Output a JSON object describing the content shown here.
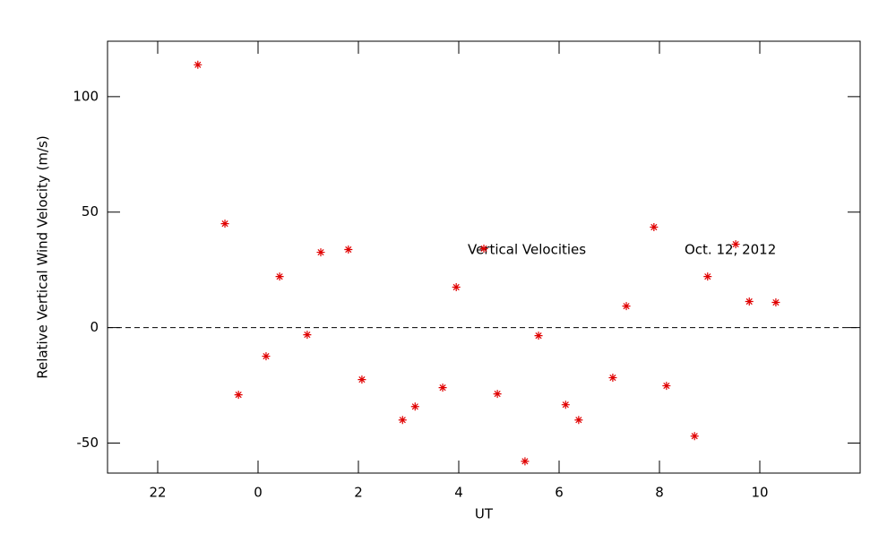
{
  "chart_data": {
    "type": "scatter",
    "x_label": "UT",
    "y_label": "Relative Vertical Wind Velocity (m/s)",
    "annotations": [
      "Vertical Velocities",
      "Oct. 12, 2012"
    ],
    "series": [
      {
        "color": "#e00000",
        "marker": "asterisk",
        "x": [
          -1.2,
          -0.66,
          -0.39,
          0.16,
          0.43,
          0.98,
          1.25,
          1.8,
          2.07,
          2.88,
          3.13,
          3.68,
          3.95,
          4.5,
          4.77,
          5.32,
          5.59,
          6.13,
          6.39,
          7.07,
          7.34,
          7.89,
          8.14,
          8.7,
          8.96,
          9.52,
          9.79,
          10.32
        ],
        "values": [
          113.8,
          45.0,
          -29.1,
          -12.4,
          22.1,
          -3.1,
          32.6,
          33.8,
          -22.5,
          -40.0,
          -34.2,
          -26.0,
          17.5,
          34.2,
          -28.7,
          -57.9,
          -3.5,
          -33.4,
          -40.0,
          -21.7,
          9.3,
          43.5,
          -25.2,
          -47.0,
          22.1,
          36.1,
          11.3,
          10.9
        ]
      }
    ],
    "xlim": [
      -3,
      12
    ],
    "xticks": [
      {
        "value": -2,
        "label": "22"
      },
      0,
      2,
      4,
      6,
      8,
      10
    ],
    "ylim": [
      -63,
      124
    ],
    "yticks": [
      -50,
      0,
      50,
      100
    ],
    "reference_line": {
      "y": 0,
      "style": "dashed"
    },
    "grid": false
  }
}
